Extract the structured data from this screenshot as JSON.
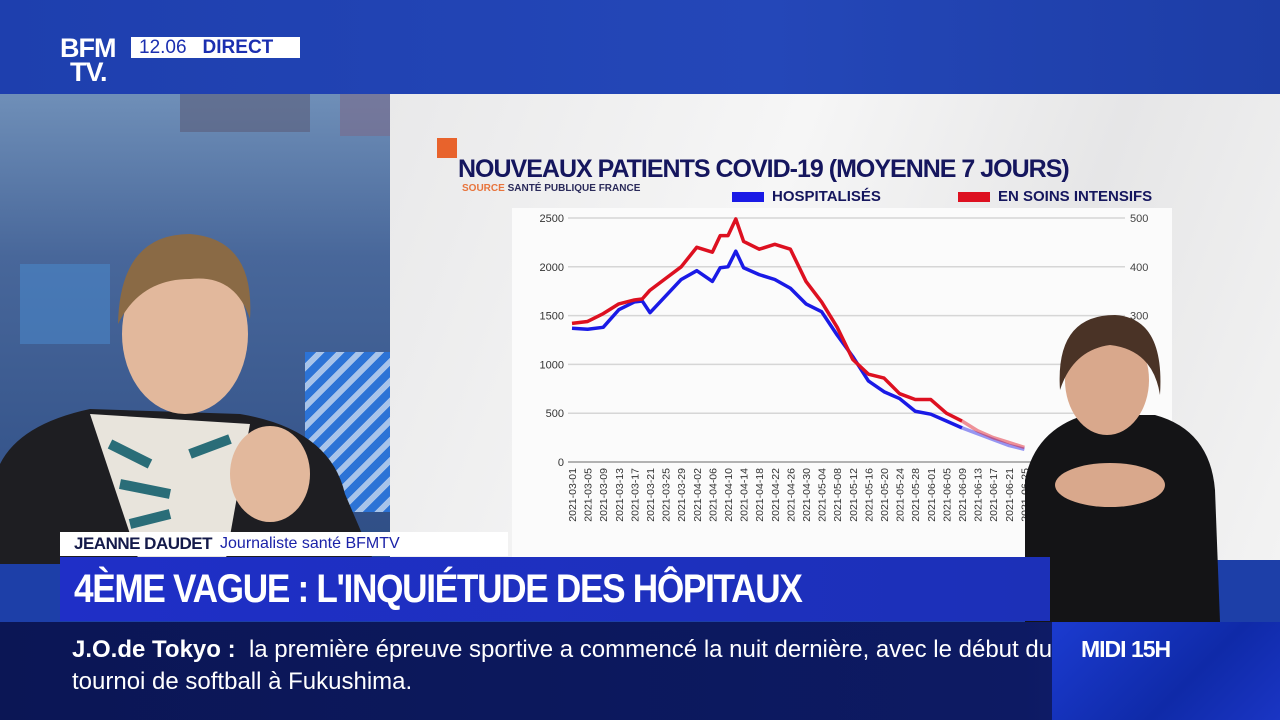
{
  "channel": {
    "logo_line1": "BFM",
    "logo_line2": "TV.",
    "clock": "12.06",
    "live_label": "DIRECT"
  },
  "colors": {
    "brand_blue": "#1e3fae",
    "series_blue": "#1a1ae6",
    "series_red": "#dd1020",
    "accent_orange": "#e8632c"
  },
  "lower_third": {
    "name": "JEANNE DAUDET",
    "role": "Journaliste santé BFMTV",
    "headline": "4ÈME VAGUE : L'INQUIÉTUDE DES HÔPITAUX"
  },
  "ticker": {
    "topic": "J.O.de Tokyo :",
    "text": "la première épreuve sportive a commencé la nuit dernière, avec le début du tournoi de softball à Fukushima."
  },
  "next_show": "MIDI 15H",
  "chart_data": {
    "type": "line",
    "title": "NOUVEAUX PATIENTS COVID-19 (MOYENNE 7 JOURS)",
    "source_label": "SOURCE",
    "source": "SANTÉ PUBLIQUE FRANCE",
    "legend": [
      "HOSPITALISÉS",
      "EN SOINS INTENSIFS"
    ],
    "legend_position": "top-right",
    "ylim_left": [
      0,
      2500
    ],
    "ylim_right": [
      0,
      500
    ],
    "yticks_left": [
      "0",
      "500",
      "1000",
      "1500",
      "2000",
      "2500"
    ],
    "yticks_right": [
      "300",
      "400",
      "500"
    ],
    "grid": true,
    "xticks": [
      "2021-03-01",
      "2021-03-05",
      "2021-03-09",
      "2021-03-13",
      "2021-03-17",
      "2021-03-21",
      "2021-03-25",
      "2021-03-29",
      "2021-04-02",
      "2021-04-06",
      "2021-04-10",
      "2021-04-14",
      "2021-04-18",
      "2021-04-22",
      "2021-04-26",
      "2021-04-30",
      "2021-05-04",
      "2021-05-08",
      "2021-05-12",
      "2021-05-16",
      "2021-05-20",
      "2021-05-24",
      "2021-05-28",
      "2021-06-01",
      "2021-06-05",
      "2021-06-09",
      "2021-06-13",
      "2021-06-17",
      "2021-06-21",
      "2021-06-25"
    ],
    "x": [
      "2021-03-01",
      "2021-03-05",
      "2021-03-09",
      "2021-03-13",
      "2021-03-17",
      "2021-03-19",
      "2021-03-21",
      "2021-03-25",
      "2021-03-29",
      "2021-04-02",
      "2021-04-06",
      "2021-04-08",
      "2021-04-10",
      "2021-04-12",
      "2021-04-14",
      "2021-04-18",
      "2021-04-22",
      "2021-04-26",
      "2021-04-30",
      "2021-05-04",
      "2021-05-08",
      "2021-05-12",
      "2021-05-16",
      "2021-05-20",
      "2021-05-24",
      "2021-05-28",
      "2021-06-01",
      "2021-06-05",
      "2021-06-09",
      "2021-06-13",
      "2021-06-17",
      "2021-06-21",
      "2021-06-25"
    ],
    "series": [
      {
        "name": "HOSPITALISÉS",
        "axis": "left",
        "values": [
          1370,
          1360,
          1380,
          1560,
          1640,
          1650,
          1530,
          1700,
          1870,
          1960,
          1850,
          1990,
          2000,
          2160,
          1990,
          1920,
          1870,
          1780,
          1620,
          1540,
          1300,
          1080,
          830,
          720,
          650,
          520,
          490,
          420,
          350,
          290,
          230,
          170,
          130
        ]
      },
      {
        "name": "EN SOINS INTENSIFS",
        "axis": "right",
        "values": [
          284,
          288,
          304,
          324,
          332,
          334,
          352,
          376,
          400,
          440,
          430,
          464,
          464,
          498,
          452,
          436,
          446,
          436,
          370,
          328,
          276,
          210,
          180,
          172,
          140,
          128,
          128,
          100,
          84,
          64,
          50,
          40,
          30
        ]
      }
    ]
  }
}
